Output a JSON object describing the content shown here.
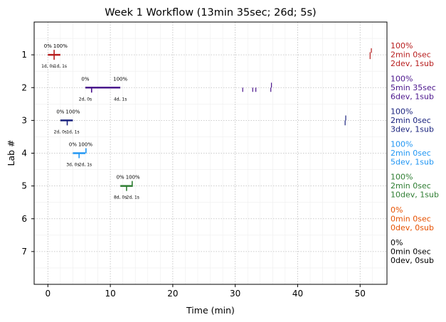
{
  "chart_data": {
    "type": "timeline",
    "title": "Week 1 Workflow (13min 35sec; 26d; 5s)",
    "xlabel": "Time (min)",
    "ylabel": "Lab #",
    "xlim": [
      -2.2,
      54.3
    ],
    "ylim": [
      8,
      0
    ],
    "x_ticks": [
      0,
      10,
      20,
      30,
      40,
      50
    ],
    "y_ticks": [
      1,
      2,
      3,
      4,
      5,
      6,
      7
    ],
    "grid": true,
    "labs": [
      {
        "lab": 1,
        "color": "#b71c1c",
        "stats": [
          "100%",
          "2min 0sec",
          "2dev, 1sub"
        ],
        "segment": [
          0,
          2
        ],
        "start_pct": "0%",
        "end_pct": "100%",
        "dev_label": "1d, 0s",
        "sub_label": "1d, 1s",
        "dev_ticks": [
          1.0
        ],
        "sub_ticks": [
          1.0
        ],
        "events": [
          {
            "x": 51.6,
            "y0": 0.92,
            "y1": 1.13
          },
          {
            "x": 51.8,
            "y0": 0.8,
            "y1": 0.94
          }
        ]
      },
      {
        "lab": 2,
        "color": "#4a148c",
        "stats": [
          "100%",
          "5min 35sec",
          "6dev, 1sub"
        ],
        "segment": [
          6,
          11.6
        ],
        "start_pct": "0%",
        "end_pct": "100%",
        "dev_label": "2d, 0s",
        "sub_label": "4d, 1s",
        "dev_ticks": [
          7.0
        ],
        "sub_ticks": [],
        "events": [
          {
            "x": 31.2,
            "y0": 2.0,
            "y1": 2.13
          },
          {
            "x": 32.8,
            "y0": 2.0,
            "y1": 2.13
          },
          {
            "x": 33.3,
            "y0": 2.0,
            "y1": 2.13
          },
          {
            "x": 35.7,
            "y0": 2.0,
            "y1": 2.13
          },
          {
            "x": 35.8,
            "y0": 1.85,
            "y1": 2.0
          }
        ]
      },
      {
        "lab": 3,
        "color": "#1a237e",
        "stats": [
          "100%",
          "2min 0sec",
          "3dev, 1sub"
        ],
        "segment": [
          2,
          4
        ],
        "start_pct": "0%",
        "end_pct": "100%",
        "dev_label": "2d, 0s",
        "sub_label": "1d, 1s",
        "dev_ticks": [
          3.1
        ],
        "sub_ticks": [],
        "events": [
          {
            "x": 47.6,
            "y0": 3.0,
            "y1": 3.15
          },
          {
            "x": 47.7,
            "y0": 2.85,
            "y1": 3.0
          }
        ]
      },
      {
        "lab": 4,
        "color": "#2196f3",
        "stats": [
          "100%",
          "2min 0sec",
          "5dev, 1sub"
        ],
        "segment": [
          4,
          6
        ],
        "start_pct": "0%",
        "end_pct": "100%",
        "dev_label": "3d, 0s",
        "sub_label": "2d, 1s",
        "dev_ticks": [
          5.0
        ],
        "sub_ticks": [
          6.1
        ],
        "events": []
      },
      {
        "lab": 5,
        "color": "#2e7d32",
        "stats": [
          "100%",
          "2min 0sec",
          "10dev, 1sub"
        ],
        "segment": [
          11.6,
          13.6
        ],
        "start_pct": "0%",
        "end_pct": "100%",
        "dev_label": "8d, 0s",
        "sub_label": "2d, 1s",
        "dev_ticks": [
          12.6
        ],
        "sub_ticks": [
          13.5
        ],
        "events": []
      },
      {
        "lab": 6,
        "color": "#e65100",
        "stats": [
          "0%",
          "0min 0sec",
          "0dev, 0sub"
        ],
        "segment": null,
        "events": []
      },
      {
        "lab": 7,
        "color": "#000000",
        "stats": [
          "0%",
          "0min 0sec",
          "0dev, 0sub"
        ],
        "segment": null,
        "events": []
      }
    ]
  }
}
